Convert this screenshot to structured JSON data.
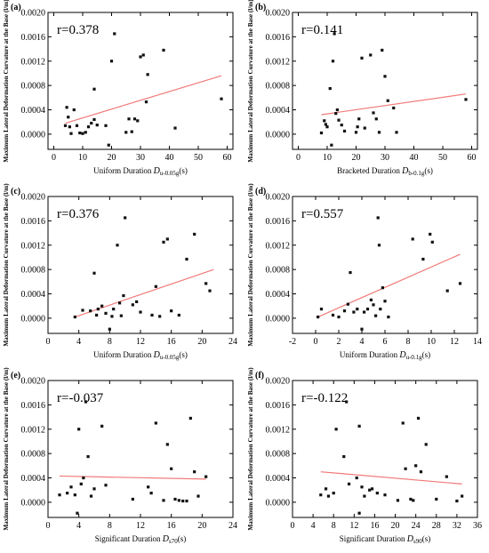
{
  "chart_data": [
    {
      "type": "scatter",
      "panel_label": "(a)",
      "r_label": "r=0.378",
      "xlabel_main": "Uniform Duration ",
      "xlabel_var": "D",
      "xlabel_sub": "u-0.05g",
      "xlabel_tail": "(s)",
      "ylabel": "Maximum Lateral Deformation Curvature at the Base (l/m)",
      "xlim": [
        -2,
        62
      ],
      "ylim": [
        -0.00025,
        0.002
      ],
      "xticks": [
        0,
        10,
        20,
        30,
        40,
        50,
        60
      ],
      "xtick_labels": [
        "0",
        "10",
        "20",
        "30",
        "40",
        "50",
        "60"
      ],
      "yticks": [
        0,
        0.0004,
        0.0008,
        0.0012,
        0.0016,
        0.002
      ],
      "ytick_labels": [
        "0.0000",
        "0.0004",
        "0.0008",
        "0.0012",
        "0.0016",
        "0.0020"
      ],
      "points": [
        [
          4,
          0.00014
        ],
        [
          4.5,
          0.00044
        ],
        [
          5,
          0.00028
        ],
        [
          5.5,
          0.00012
        ],
        [
          6,
          1e-05
        ],
        [
          7,
          0.0004
        ],
        [
          8,
          0.00014
        ],
        [
          9,
          2e-05
        ],
        [
          10,
          1e-05
        ],
        [
          11,
          3e-05
        ],
        [
          12,
          0.00012
        ],
        [
          13,
          0.00018
        ],
        [
          14,
          0.00024
        ],
        [
          14,
          0.00074
        ],
        [
          15,
          0.00015
        ],
        [
          18,
          0.00014
        ],
        [
          19,
          -0.00018
        ],
        [
          20,
          0.0012
        ],
        [
          21,
          0.00165
        ],
        [
          25,
          3e-05
        ],
        [
          26,
          0.00025
        ],
        [
          27,
          4e-05
        ],
        [
          28,
          0.00025
        ],
        [
          29,
          0.00022
        ],
        [
          30,
          0.00127
        ],
        [
          31,
          0.0013
        ],
        [
          32,
          0.00053
        ],
        [
          32.5,
          0.00098
        ],
        [
          38,
          0.00138
        ],
        [
          42,
          0.0001
        ],
        [
          58,
          0.00058
        ]
      ],
      "fit_line": [
        [
          4,
          0.00018
        ],
        [
          58,
          0.00096
        ]
      ]
    },
    {
      "type": "scatter",
      "panel_label": "(b)",
      "r_label": "r=0.141",
      "xlabel_main": "Bracketed Duration ",
      "xlabel_var": "D",
      "xlabel_sub": "b-0.1g",
      "xlabel_tail": "(s)",
      "ylabel": "Maximum Lateral Deformation Curvature at the Base (l/m)",
      "xlim": [
        -2,
        62
      ],
      "ylim": [
        -0.00025,
        0.002
      ],
      "xticks": [
        0,
        10,
        20,
        30,
        40,
        50,
        60
      ],
      "xtick_labels": [
        "0",
        "10",
        "20",
        "30",
        "40",
        "50",
        "60"
      ],
      "yticks": [
        0,
        0.0004,
        0.0008,
        0.0012,
        0.0016,
        0.002
      ],
      "ytick_labels": [
        "0.0000",
        "0.0004",
        "0.0008",
        "0.0012",
        "0.0016",
        "0.0020"
      ],
      "points": [
        [
          8,
          2e-05
        ],
        [
          9,
          0.00022
        ],
        [
          9.5,
          0.00016
        ],
        [
          10,
          0.00012
        ],
        [
          11,
          0.00075
        ],
        [
          11.5,
          -0.00018
        ],
        [
          12,
          0.0012
        ],
        [
          12.5,
          0.00165
        ],
        [
          13,
          0.00034
        ],
        [
          13.5,
          0.0004
        ],
        [
          14,
          0.00023
        ],
        [
          15,
          0.00015
        ],
        [
          16,
          5e-05
        ],
        [
          20,
          3e-05
        ],
        [
          20.5,
          0.00012
        ],
        [
          21,
          0.00025
        ],
        [
          22,
          0.00125
        ],
        [
          23,
          0.0001
        ],
        [
          25,
          0.0013
        ],
        [
          26,
          0.00035
        ],
        [
          27,
          0.00025
        ],
        [
          28,
          3e-05
        ],
        [
          29,
          0.00138
        ],
        [
          30,
          0.00095
        ],
        [
          31,
          0.00055
        ],
        [
          33,
          0.00043
        ],
        [
          34,
          3e-05
        ],
        [
          58,
          0.00057
        ]
      ],
      "fit_line": [
        [
          8,
          0.00032
        ],
        [
          58,
          0.00066
        ]
      ]
    },
    {
      "type": "scatter",
      "panel_label": "(c)",
      "r_label": "r=0.376",
      "xlabel_main": "Uniform Duration ",
      "xlabel_var": "D",
      "xlabel_sub": "u-0.05g",
      "xlabel_tail": "(s)",
      "ylabel": "Maximum Lateral Deformation Curvature at the Base (l/m)",
      "xlim": [
        0,
        24
      ],
      "ylim": [
        -0.00025,
        0.002
      ],
      "xticks": [
        0,
        4,
        8,
        12,
        16,
        20,
        24
      ],
      "xtick_labels": [
        "0",
        "4",
        "8",
        "12",
        "16",
        "20",
        "24"
      ],
      "yticks": [
        0,
        0.0004,
        0.0008,
        0.0012,
        0.0016,
        0.002
      ],
      "ytick_labels": [
        "0.0000",
        "0.0004",
        "0.0008",
        "0.0012",
        "0.0016",
        "0.0020"
      ],
      "points": [
        [
          3.5,
          2e-05
        ],
        [
          4.5,
          0.00013
        ],
        [
          5.5,
          0.00012
        ],
        [
          6,
          0.00074
        ],
        [
          6.3,
          5e-05
        ],
        [
          6.5,
          0.00015
        ],
        [
          7,
          0.0002
        ],
        [
          7.5,
          8e-05
        ],
        [
          8,
          -0.00018
        ],
        [
          8.3,
          3e-05
        ],
        [
          8.5,
          0.00015
        ],
        [
          9,
          0.0012
        ],
        [
          9.3,
          0.00025
        ],
        [
          9.5,
          4e-05
        ],
        [
          9.8,
          0.00037
        ],
        [
          10,
          0.00165
        ],
        [
          11,
          0.00022
        ],
        [
          11.5,
          0.00027
        ],
        [
          12,
          0.0001
        ],
        [
          13.5,
          5e-05
        ],
        [
          14,
          0.00052
        ],
        [
          14.5,
          3e-05
        ],
        [
          15,
          0.00125
        ],
        [
          15.5,
          0.0013
        ],
        [
          16,
          0.00012
        ],
        [
          17,
          5e-05
        ],
        [
          18,
          0.00097
        ],
        [
          19,
          0.00138
        ],
        [
          20.5,
          0.00057
        ],
        [
          21,
          0.00045
        ]
      ],
      "fit_line": [
        [
          3.5,
          2e-05
        ],
        [
          21.5,
          0.0008
        ]
      ]
    },
    {
      "type": "scatter",
      "panel_label": "(d)",
      "r_label": "r=0.557",
      "xlabel_main": "Uniform Duration ",
      "xlabel_var": "D",
      "xlabel_sub": "u-0.1g",
      "xlabel_tail": "(s)",
      "ylabel": "Maximum Lateral Deformation Curvature at the Base (l/m)",
      "xlim": [
        -2,
        14
      ],
      "ylim": [
        -0.00025,
        0.002
      ],
      "xticks": [
        -2,
        0,
        2,
        4,
        6,
        8,
        10,
        12,
        14
      ],
      "xtick_labels": [
        "-2",
        "0",
        "2",
        "4",
        "6",
        "8",
        "10",
        "12",
        "14"
      ],
      "yticks": [
        0,
        0.0004,
        0.0008,
        0.0012,
        0.0016,
        0.002
      ],
      "ytick_labels": [
        "0.0000",
        "0.0004",
        "0.0008",
        "0.0012",
        "0.0016",
        "0.0020"
      ],
      "points": [
        [
          0.2,
          2e-05
        ],
        [
          0.5,
          0.00015
        ],
        [
          1.5,
          5e-05
        ],
        [
          2,
          2e-05
        ],
        [
          2.5,
          0.00012
        ],
        [
          2.8,
          0.00023
        ],
        [
          3,
          0.00075
        ],
        [
          3.3,
          0.0001
        ],
        [
          3.6,
          0.00015
        ],
        [
          4,
          -0.00018
        ],
        [
          4.2,
          0.0001
        ],
        [
          4.5,
          0.00015
        ],
        [
          4.8,
          0.0003
        ],
        [
          5,
          0.00022
        ],
        [
          5.2,
          4e-05
        ],
        [
          5.4,
          0.00165
        ],
        [
          5.5,
          0.0012
        ],
        [
          5.6,
          0.00015
        ],
        [
          5.8,
          0.0005
        ],
        [
          6,
          0.00028
        ],
        [
          6.3,
          2e-05
        ],
        [
          8.4,
          0.0013
        ],
        [
          9.3,
          0.00097
        ],
        [
          9.9,
          0.00138
        ],
        [
          10.1,
          0.00125
        ],
        [
          11.4,
          0.00045
        ],
        [
          12.5,
          0.00057
        ]
      ],
      "fit_line": [
        [
          0.2,
          2e-05
        ],
        [
          12.5,
          0.00105
        ]
      ]
    },
    {
      "type": "scatter",
      "panel_label": "(e)",
      "r_label": "r=-0.037",
      "xlabel_main": "Significant Duration ",
      "xlabel_var": "D",
      "xlabel_sub": "s70",
      "xlabel_tail": "(s)",
      "ylabel": "Maximum Lateral Deformation Curvature at the Base (l/m)",
      "xlim": [
        0,
        24
      ],
      "ylim": [
        -0.00025,
        0.002
      ],
      "xticks": [
        0,
        4,
        8,
        12,
        16,
        20,
        24
      ],
      "xtick_labels": [
        "0",
        "4",
        "8",
        "12",
        "16",
        "20",
        "24"
      ],
      "yticks": [
        0,
        0.0004,
        0.0008,
        0.0012,
        0.0016,
        0.002
      ],
      "ytick_labels": [
        "0.0000",
        "0.0004",
        "0.0008",
        "0.0012",
        "0.0016",
        "0.0020"
      ],
      "points": [
        [
          1.5,
          0.00012
        ],
        [
          2.5,
          0.00015
        ],
        [
          3,
          0.00025
        ],
        [
          3.5,
          0.00012
        ],
        [
          3.8,
          -0.00018
        ],
        [
          4,
          0.0012
        ],
        [
          4.3,
          0.0003
        ],
        [
          4.6,
          0.0004
        ],
        [
          4.9,
          0.00165
        ],
        [
          5.2,
          0.00075
        ],
        [
          5.6,
          0.0001
        ],
        [
          6,
          0.00022
        ],
        [
          7,
          0.00125
        ],
        [
          7.5,
          0.00028
        ],
        [
          11,
          5e-05
        ],
        [
          13,
          0.00025
        ],
        [
          13.4,
          0.00015
        ],
        [
          14,
          0.0013
        ],
        [
          15,
          3e-05
        ],
        [
          15.5,
          0.00095
        ],
        [
          16,
          0.00055
        ],
        [
          16.5,
          5e-05
        ],
        [
          17,
          3e-05
        ],
        [
          17.5,
          2e-05
        ],
        [
          18,
          2e-05
        ],
        [
          18.5,
          0.00138
        ],
        [
          19,
          0.0005
        ],
        [
          19.5,
          0.0001
        ],
        [
          20.5,
          0.00042
        ]
      ],
      "fit_line": [
        [
          1.5,
          0.00043
        ],
        [
          20.5,
          0.00038
        ]
      ]
    },
    {
      "type": "scatter",
      "panel_label": "(f)",
      "r_label": "r=-0.122",
      "xlabel_main": "Significant Duration ",
      "xlabel_var": "D",
      "xlabel_sub": "s90",
      "xlabel_tail": "(s)",
      "ylabel": "Maximum Lateral Deformation Curvature at the Base (l/m)",
      "xlim": [
        0,
        36
      ],
      "ylim": [
        -0.00025,
        0.002
      ],
      "xticks": [
        0,
        4,
        8,
        12,
        16,
        20,
        24,
        28,
        32,
        36
      ],
      "xtick_labels": [
        "0",
        "4",
        "8",
        "12",
        "16",
        "20",
        "24",
        "28",
        "32",
        "36"
      ],
      "yticks": [
        0,
        0.0004,
        0.0008,
        0.0012,
        0.0016,
        0.002
      ],
      "ytick_labels": [
        "0.0000",
        "0.0004",
        "0.0008",
        "0.0012",
        "0.0016",
        "0.0020"
      ],
      "points": [
        [
          5.5,
          0.00012
        ],
        [
          6.5,
          0.00022
        ],
        [
          7,
          0.0001
        ],
        [
          8,
          0.00015
        ],
        [
          8.5,
          0.0012
        ],
        [
          10,
          0.00075
        ],
        [
          10.5,
          0.00165
        ],
        [
          11,
          0.0003
        ],
        [
          12.5,
          0.0004
        ],
        [
          13,
          0.00125
        ],
        [
          13.5,
          0.00025
        ],
        [
          13,
          -0.00018
        ],
        [
          14,
          0.0001
        ],
        [
          15,
          0.0002
        ],
        [
          15.5,
          0.00022
        ],
        [
          16.5,
          0.00015
        ],
        [
          18,
          0.00012
        ],
        [
          20.5,
          3e-05
        ],
        [
          21.5,
          0.0013
        ],
        [
          22,
          0.00055
        ],
        [
          23,
          5e-05
        ],
        [
          23.5,
          3e-05
        ],
        [
          24,
          0.0006
        ],
        [
          24.5,
          0.00138
        ],
        [
          25,
          0.0005
        ],
        [
          26,
          0.00095
        ],
        [
          28,
          5e-05
        ],
        [
          30,
          0.00042
        ],
        [
          32,
          2e-05
        ],
        [
          33,
          0.0001
        ]
      ],
      "fit_line": [
        [
          5.5,
          0.0005
        ],
        [
          33,
          0.0003
        ]
      ]
    }
  ]
}
